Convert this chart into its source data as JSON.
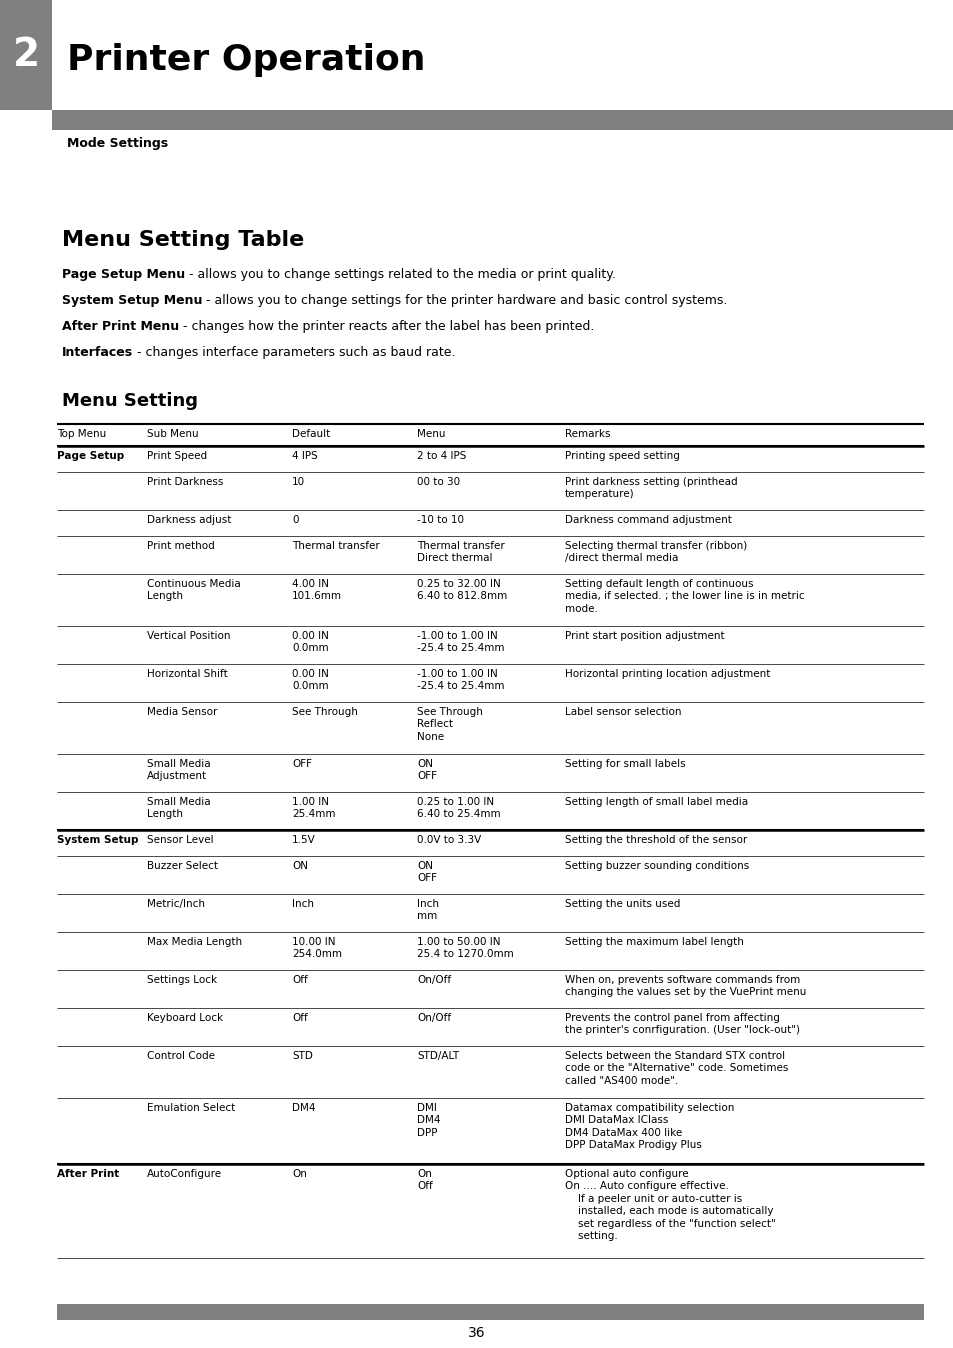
{
  "chapter_num": "2",
  "chapter_title": "Printer Operation",
  "section_title": "Mode Settings",
  "header_bg": "#808080",
  "sidebar_bg": "#808080",
  "page_bg": "#ffffff",
  "menu_table_title": "Menu Setting Table",
  "menu_descriptions": [
    {
      "bold": "Page Setup Menu",
      "normal": " - allows you to change settings related to the media or print quality."
    },
    {
      "bold": "System Setup Menu",
      "normal": " - allows you to change settings for the printer hardware and basic control systems."
    },
    {
      "bold": "After Print Menu",
      "normal": " - changes how the printer reacts after the label has been printed."
    },
    {
      "bold": "Interfaces",
      "normal": " - changes interface parameters such as baud rate."
    }
  ],
  "menu_setting_subtitle": "Menu Setting",
  "table_headers": [
    "Top Menu",
    "Sub Menu",
    "Default",
    "Menu",
    "Remarks"
  ],
  "rows": [
    {
      "top_menu": "Page Setup",
      "bold_top": true,
      "sub_menu": "Print Speed",
      "default": "4 IPS",
      "menu": "2 to 4 IPS",
      "remarks": "Printing speed setting",
      "top_thick": true,
      "bot_thick": false
    },
    {
      "top_menu": "",
      "bold_top": false,
      "sub_menu": "Print Darkness",
      "default": "10",
      "menu": "00 to 30",
      "remarks": "Print darkness setting (printhead\ntemperature)",
      "top_thick": false,
      "bot_thick": false
    },
    {
      "top_menu": "",
      "bold_top": false,
      "sub_menu": "Darkness adjust",
      "default": "0",
      "menu": "-10 to 10",
      "remarks": "Darkness command adjustment",
      "top_thick": false,
      "bot_thick": false
    },
    {
      "top_menu": "",
      "bold_top": false,
      "sub_menu": "Print method",
      "default": "Thermal transfer",
      "menu": "Thermal transfer\nDirect thermal",
      "remarks": "Selecting thermal transfer (ribbon)\n/direct thermal media",
      "top_thick": false,
      "bot_thick": false
    },
    {
      "top_menu": "",
      "bold_top": false,
      "sub_menu": "Continuous Media\nLength",
      "default": "4.00 IN\n101.6mm",
      "menu": "0.25 to 32.00 IN\n6.40 to 812.8mm",
      "remarks": "Setting default length of continuous\nmedia, if selected. ; the lower line is in metric\nmode.",
      "top_thick": false,
      "bot_thick": false
    },
    {
      "top_menu": "",
      "bold_top": false,
      "sub_menu": "Vertical Position",
      "default": "0.00 IN\n0.0mm",
      "menu": "-1.00 to 1.00 IN\n-25.4 to 25.4mm",
      "remarks": "Print start position adjustment",
      "top_thick": false,
      "bot_thick": false
    },
    {
      "top_menu": "",
      "bold_top": false,
      "sub_menu": "Horizontal Shift",
      "default": "0.00 IN\n0.0mm",
      "menu": "-1.00 to 1.00 IN\n-25.4 to 25.4mm",
      "remarks": "Horizontal printing location adjustment",
      "top_thick": false,
      "bot_thick": false
    },
    {
      "top_menu": "",
      "bold_top": false,
      "sub_menu": "Media Sensor",
      "default": "See Through",
      "menu": "See Through\nReflect\nNone",
      "remarks": "Label sensor selection",
      "top_thick": false,
      "bot_thick": false
    },
    {
      "top_menu": "",
      "bold_top": false,
      "sub_menu": "Small Media\nAdjustment",
      "default": "OFF",
      "menu": "ON\nOFF",
      "remarks": "Setting for small labels",
      "top_thick": false,
      "bot_thick": false
    },
    {
      "top_menu": "",
      "bold_top": false,
      "sub_menu": "Small Media\nLength",
      "default": "1.00 IN\n25.4mm",
      "menu": "0.25 to 1.00 IN\n6.40 to 25.4mm",
      "remarks": "Setting length of small label media",
      "top_thick": false,
      "bot_thick": true
    },
    {
      "top_menu": "System Setup",
      "bold_top": true,
      "sub_menu": "Sensor Level",
      "default": "1.5V",
      "menu": "0.0V to 3.3V",
      "remarks": "Setting the threshold of the sensor",
      "top_thick": true,
      "bot_thick": false
    },
    {
      "top_menu": "",
      "bold_top": false,
      "sub_menu": "Buzzer Select",
      "default": "ON",
      "menu": "ON\nOFF",
      "remarks": "Setting buzzer sounding conditions",
      "top_thick": false,
      "bot_thick": false
    },
    {
      "top_menu": "",
      "bold_top": false,
      "sub_menu": "Metric/Inch",
      "default": "Inch",
      "menu": "Inch\nmm",
      "remarks": "Setting the units used",
      "top_thick": false,
      "bot_thick": false
    },
    {
      "top_menu": "",
      "bold_top": false,
      "sub_menu": "Max Media Length",
      "default": "10.00 IN\n254.0mm",
      "menu": "1.00 to 50.00 IN\n25.4 to 1270.0mm",
      "remarks": "Setting the maximum label length",
      "top_thick": false,
      "bot_thick": false
    },
    {
      "top_menu": "",
      "bold_top": false,
      "sub_menu": "Settings Lock",
      "default": "Off",
      "menu": "On/Off",
      "remarks": "When on, prevents software commands from\nchanging the values set by the VuePrint menu",
      "top_thick": false,
      "bot_thick": false
    },
    {
      "top_menu": "",
      "bold_top": false,
      "sub_menu": "Keyboard Lock",
      "default": "Off",
      "menu": "On/Off",
      "remarks": "Prevents the control panel from affecting\nthe printer's conrfiguration. (User \"lock-out\")",
      "top_thick": false,
      "bot_thick": false
    },
    {
      "top_menu": "",
      "bold_top": false,
      "sub_menu": "Control Code",
      "default": "STD",
      "menu": "STD/ALT",
      "remarks": "Selects between the Standard STX control\ncode or the \"Alternative\" code. Sometimes\ncalled \"AS400 mode\".",
      "top_thick": false,
      "bot_thick": false
    },
    {
      "top_menu": "",
      "bold_top": false,
      "sub_menu": "Emulation Select",
      "default": "DM4",
      "menu": "DMI\nDM4\nDPP",
      "remarks": "Datamax compatibility selection\nDMI DataMax IClass\nDM4 DataMax 400 like\nDPP DataMax Prodigy Plus",
      "top_thick": false,
      "bot_thick": true
    },
    {
      "top_menu": "After Print",
      "bold_top": true,
      "sub_menu": "AutoConfigure",
      "default": "On",
      "menu": "On\nOff",
      "remarks": "Optional auto configure\nOn .... Auto configure effective.\n    If a peeler unit or auto-cutter is\n    installed, each mode is automatically\n    set regardless of the \"function select\"\n    setting.",
      "top_thick": true,
      "bot_thick": false
    }
  ],
  "page_num": "36"
}
